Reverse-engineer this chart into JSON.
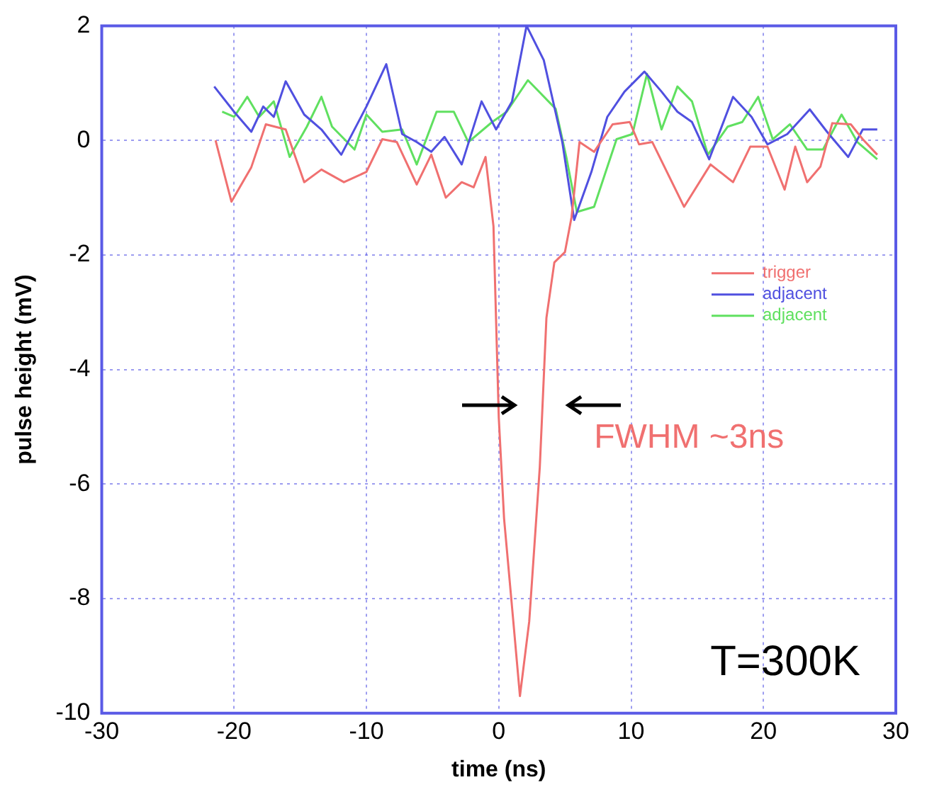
{
  "chart_data": {
    "type": "line",
    "xlabel": "time (ns)",
    "ylabel": "pulse height (mV)",
    "xlim": [
      -30,
      30
    ],
    "xticks": [
      -30,
      -20,
      -10,
      0,
      10,
      20,
      30
    ],
    "ylim": [
      -10,
      2
    ],
    "yticks": [
      -10,
      -8,
      -6,
      -4,
      -2,
      0,
      2
    ],
    "grid": true,
    "legend": "right",
    "marker": "none",
    "line_style": "solid",
    "annotations": [
      "FWHM ~3ns",
      "T=300K"
    ],
    "series": [
      {
        "name": "trigger",
        "color": "#f07070",
        "x": [
          -21.4,
          -20.2,
          -18.7,
          -17.6,
          -16.1,
          -14.7,
          -13.4,
          -11.7,
          -10,
          -8.8,
          -7.7,
          -6.2,
          -5.1,
          -4,
          -2.8,
          -1.9,
          -1,
          -0.4,
          0,
          0.4,
          1.1,
          1.6,
          2.3,
          3.1,
          3.6,
          4.2,
          5,
          5.5,
          6.1,
          7.2,
          8.6,
          9.9,
          10.6,
          11.6,
          14,
          16,
          17.7,
          19,
          20.3,
          21.6,
          22.4,
          23.3,
          24.3,
          25.2,
          26.6,
          27.5,
          28.6
        ],
        "values": [
          0,
          -1.07,
          -0.47,
          0.28,
          0.19,
          -0.73,
          -0.51,
          -0.73,
          -0.55,
          0.02,
          -0.03,
          -0.77,
          -0.25,
          -1,
          -0.73,
          -0.82,
          -0.29,
          -1.5,
          -4.84,
          -6.6,
          -8.4,
          -9.7,
          -8.4,
          -5.7,
          -3.1,
          -2.13,
          -1.95,
          -1.34,
          -0.03,
          -0.2,
          0.28,
          0.32,
          -0.07,
          -0.03,
          -1.16,
          -0.42,
          -0.73,
          -0.11,
          -0.11,
          -0.86,
          -0.11,
          -0.73,
          -0.46,
          0.3,
          0.28,
          0.02,
          -0.25
        ]
      },
      {
        "name": "adjacent",
        "color": "#5050e0",
        "x": [
          -21.5,
          -20,
          -18.7,
          -17.8,
          -17,
          -16.1,
          -14.7,
          -13.4,
          -11.9,
          -10,
          -8.5,
          -7.3,
          -6.2,
          -5.1,
          -4.1,
          -2.8,
          -1.3,
          -0.2,
          1,
          2.1,
          3.4,
          4.8,
          5.7,
          7,
          8.2,
          9.5,
          11,
          12.3,
          13.5,
          14.6,
          15.9,
          17.7,
          19.1,
          20.3,
          21.8,
          23.5,
          24.8,
          26.4,
          27.5,
          28.6
        ],
        "values": [
          0.94,
          0.5,
          0.15,
          0.59,
          0.41,
          1.03,
          0.45,
          0.19,
          -0.25,
          0.59,
          1.33,
          0.11,
          -0.03,
          -0.2,
          0.06,
          -0.42,
          0.68,
          0.19,
          0.68,
          2,
          1.4,
          -0.03,
          -1.39,
          -0.55,
          0.41,
          0.85,
          1.2,
          0.85,
          0.5,
          0.32,
          -0.33,
          0.76,
          0.41,
          -0.07,
          0.11,
          0.54,
          0.15,
          -0.29,
          0.19,
          0.19
        ]
      },
      {
        "name": "adjacent",
        "color": "#60e060",
        "x": [
          -20.9,
          -20,
          -19,
          -18.1,
          -17,
          -15.8,
          -14.5,
          -13.4,
          -12.6,
          -10.9,
          -10,
          -8.8,
          -7.3,
          -6.2,
          -4.7,
          -3.4,
          -2.3,
          -0.5,
          0.6,
          2.2,
          4.3,
          5.1,
          5.9,
          7.2,
          8.9,
          10.1,
          11.2,
          12.3,
          13.5,
          14.6,
          15.8,
          17.3,
          18.4,
          19.6,
          20.7,
          22,
          23.3,
          24.5,
          25.9,
          27.1,
          28.6
        ],
        "values": [
          0.5,
          0.41,
          0.76,
          0.41,
          0.68,
          -0.29,
          0.24,
          0.76,
          0.24,
          -0.16,
          0.45,
          0.15,
          0.19,
          -0.42,
          0.5,
          0.5,
          -0.03,
          0.32,
          0.5,
          1.05,
          0.55,
          -0.29,
          -1.25,
          -1.16,
          0.02,
          0.11,
          1.16,
          0.19,
          0.94,
          0.68,
          -0.25,
          0.24,
          0.32,
          0.76,
          0.02,
          0.28,
          -0.16,
          -0.16,
          0.45,
          -0.03,
          -0.33
        ]
      }
    ]
  }
}
